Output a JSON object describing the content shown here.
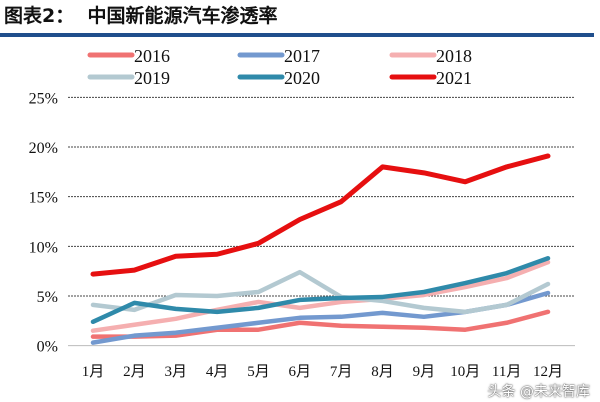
{
  "header": {
    "title": "图表2：  中国新能源汽车渗透率"
  },
  "watermark": "头条 @未来智库",
  "chart_data": {
    "type": "line",
    "title": "中国新能源汽车渗透率",
    "xlabel": "",
    "ylabel": "",
    "categories": [
      "1月",
      "2月",
      "3月",
      "4月",
      "5月",
      "6月",
      "7月",
      "8月",
      "9月",
      "10月",
      "11月",
      "12月"
    ],
    "ylim": [
      0,
      25
    ],
    "yticks": [
      "0%",
      "5%",
      "10%",
      "15%",
      "20%",
      "25%"
    ],
    "grid": "horizontal dotted",
    "legend": "top",
    "series": [
      {
        "name": "2016",
        "color": "#f07272",
        "values": [
          0.9,
          0.9,
          1.0,
          1.6,
          1.6,
          2.3,
          2.0,
          1.9,
          1.8,
          1.6,
          2.3,
          3.4
        ]
      },
      {
        "name": "2017",
        "color": "#7399cf",
        "values": [
          0.3,
          1.0,
          1.3,
          1.8,
          2.3,
          2.8,
          2.9,
          3.3,
          2.9,
          3.4,
          4.1,
          5.3
        ]
      },
      {
        "name": "2018",
        "color": "#f5afb0",
        "values": [
          1.5,
          2.1,
          2.7,
          3.6,
          4.4,
          3.8,
          4.4,
          4.7,
          5.1,
          5.9,
          6.8,
          8.4
        ]
      },
      {
        "name": "2019",
        "color": "#b3c9d1",
        "values": [
          4.1,
          3.6,
          5.1,
          5.0,
          5.4,
          7.4,
          4.9,
          4.5,
          3.8,
          3.4,
          4.1,
          6.2
        ]
      },
      {
        "name": "2020",
        "color": "#2f8aaa",
        "values": [
          2.4,
          4.3,
          3.7,
          3.4,
          3.8,
          4.6,
          4.8,
          4.9,
          5.4,
          6.3,
          7.3,
          8.8
        ]
      },
      {
        "name": "2021",
        "color": "#e60f10",
        "values": [
          7.2,
          7.6,
          9.0,
          9.2,
          10.3,
          12.7,
          14.5,
          18.0,
          17.4,
          16.5,
          18.0,
          19.1
        ]
      }
    ]
  }
}
